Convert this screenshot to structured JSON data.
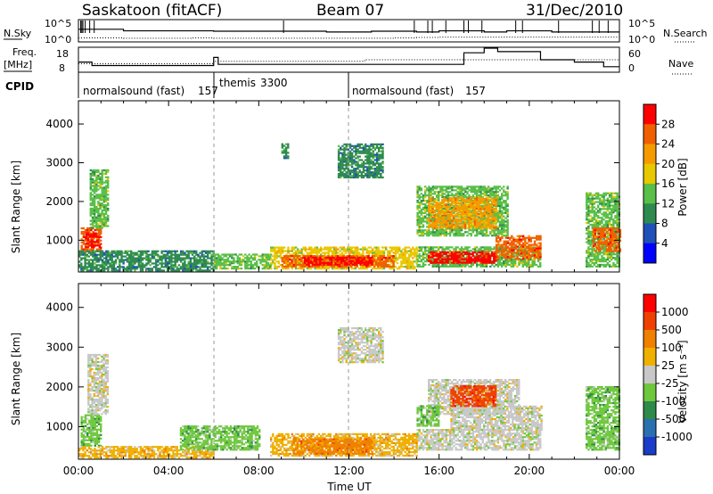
{
  "header": {
    "station": "Saskatoon (fitACF)",
    "beam": "Beam 07",
    "date": "31/Dec/2010"
  },
  "noise_panel": {
    "left_label": "N.Sky",
    "left_ticks": [
      "10^5",
      "10^0"
    ],
    "right_ticks": [
      "10^5",
      "10^0"
    ],
    "right_label": "N.Search",
    "sky_levels": [
      3,
      3,
      2.6,
      2.6,
      2.6,
      2.6,
      2.5,
      2.5,
      2.5,
      2.5,
      2.5,
      2.3,
      2.3,
      2.5,
      2.5,
      2.3,
      2.6,
      2.6,
      2.3,
      2.6,
      2.6,
      2.3,
      2.3,
      2.3
    ],
    "search_levels": [
      0.8,
      0.8,
      0.7,
      0.7,
      0.7,
      0.8,
      0.7,
      0.7,
      0.7,
      0.7,
      0.7,
      0.7,
      0.7,
      0.7,
      0.8,
      0.9,
      1.0,
      1.0,
      1.0,
      1.0,
      1.0,
      1.0,
      1.0,
      1.0
    ]
  },
  "freq_panel": {
    "left_label_1": "Freq.",
    "left_label_2": "[MHz]",
    "left_ticks": [
      "18",
      "8"
    ],
    "right_ticks": [
      "60",
      "0"
    ],
    "right_label": "Nave",
    "freq_segments_mhz": [
      [
        0,
        0.6,
        12
      ],
      [
        0.6,
        6.0,
        10.5
      ],
      [
        6.0,
        6.2,
        14
      ],
      [
        6.2,
        12.7,
        11
      ],
      [
        12.7,
        17.1,
        11
      ],
      [
        17.1,
        18.0,
        16
      ],
      [
        18.0,
        18.6,
        18
      ],
      [
        18.6,
        20.5,
        16.5
      ],
      [
        20.5,
        22.0,
        13
      ],
      [
        22.0,
        23.3,
        12
      ],
      [
        23.3,
        24.0,
        10
      ]
    ],
    "nave_segments": [
      [
        0,
        6.0,
        20
      ],
      [
        6.0,
        12.7,
        26
      ],
      [
        12.7,
        24.0,
        30
      ]
    ]
  },
  "cpid_panel": {
    "label": "CPID",
    "programs": [
      {
        "name": "normalsound (fast)",
        "cpid": "157",
        "start_hour": 0
      },
      {
        "name": "themis",
        "cpid": "3300",
        "start_hour": 6
      },
      {
        "name": "normalsound (fast)",
        "cpid": "157",
        "start_hour": 12
      }
    ]
  },
  "power_panel": {
    "ylabel": "Slant Range [km]",
    "yticks": [
      "4000",
      "3000",
      "2000",
      "1000"
    ],
    "colorbar_label": "Power [dB]",
    "colorbar_ticks": [
      "28",
      "24",
      "20",
      "16",
      "12",
      "8",
      "4"
    ],
    "colors": [
      "#0000ff",
      "#1f50b8",
      "#2f8a50",
      "#5abf48",
      "#e8c800",
      "#f59b00",
      "#f06000",
      "#ff0000"
    ]
  },
  "velocity_panel": {
    "ylabel": "Slant Range [km]",
    "yticks": [
      "4000",
      "3000",
      "2000",
      "1000"
    ],
    "colorbar_label": "Velocity [m s⁻¹]",
    "colorbar_ticks": [
      "1000",
      "500",
      "100",
      "25",
      "-25",
      "-100",
      "-500",
      "-1000"
    ],
    "colors": [
      "#1a3cc8",
      "#2a6fb0",
      "#2e8a48",
      "#6ec83c",
      "#c8c8c8",
      "#f0b000",
      "#f08000",
      "#f04000",
      "#ff0000"
    ]
  },
  "time_axis": {
    "ticks": [
      "00:00",
      "04:00",
      "08:00",
      "12:00",
      "16:00",
      "20:00",
      "00:00"
    ],
    "xlabel": "Time UT"
  },
  "chart_data": [
    {
      "type": "line",
      "title": "N.Sky / N.Search",
      "x_unit": "hours UT",
      "xlim": [
        0,
        24
      ],
      "series": [
        {
          "name": "N.Sky",
          "x": [
            0,
            1,
            2,
            3,
            4,
            5,
            6,
            7,
            8,
            9,
            10,
            11,
            12,
            13,
            14,
            15,
            16,
            17,
            18,
            19,
            20,
            21,
            22,
            23
          ],
          "values": [
            3,
            3,
            2.6,
            2.6,
            2.6,
            2.6,
            2.5,
            2.5,
            2.5,
            2.5,
            2.5,
            2.3,
            2.3,
            2.5,
            2.5,
            2.3,
            2.6,
            2.6,
            2.3,
            2.6,
            2.6,
            2.3,
            2.3,
            2.3
          ]
        },
        {
          "name": "N.Search",
          "x": [
            0,
            1,
            2,
            3,
            4,
            5,
            6,
            7,
            8,
            9,
            10,
            11,
            12,
            13,
            14,
            15,
            16,
            17,
            18,
            19,
            20,
            21,
            22,
            23
          ],
          "values": [
            0.8,
            0.8,
            0.7,
            0.7,
            0.7,
            0.8,
            0.7,
            0.7,
            0.7,
            0.7,
            0.7,
            0.7,
            0.7,
            0.7,
            0.8,
            0.9,
            1.0,
            1.0,
            1.0,
            1.0,
            1.0,
            1.0,
            1.0,
            1.0
          ]
        }
      ]
    },
    {
      "type": "line",
      "title": "Freq. [MHz] / Nave",
      "x_unit": "hours UT",
      "xlim": [
        0,
        24
      ],
      "ylim_freq": [
        8,
        18
      ],
      "ylim_nave": [
        0,
        60
      ]
    },
    {
      "type": "heatmap",
      "title": "Power [dB]",
      "xlabel": "Time UT",
      "ylabel": "Slant Range [km]",
      "xlim": [
        0,
        24
      ],
      "ylim": [
        180,
        4600
      ],
      "clim": [
        0,
        30
      ],
      "regions": [
        {
          "t0": 0.1,
          "t1": 1.0,
          "r0": 700,
          "r1": 1300,
          "level": 6
        },
        {
          "t0": 0.3,
          "t1": 0.9,
          "r0": 800,
          "r1": 1200,
          "level": 7
        },
        {
          "t0": 0.5,
          "t1": 1.3,
          "r0": 1300,
          "r1": 2800,
          "level": 3
        },
        {
          "t0": 0.0,
          "t1": 6.0,
          "r0": 200,
          "r1": 700,
          "level": 2
        },
        {
          "t0": 6.0,
          "t1": 8.5,
          "r0": 250,
          "r1": 650,
          "level": 3
        },
        {
          "t0": 8.5,
          "t1": 15.0,
          "r0": 250,
          "r1": 800,
          "level": 4
        },
        {
          "t0": 9.0,
          "t1": 14.0,
          "r0": 300,
          "r1": 600,
          "level": 6
        },
        {
          "t0": 10.0,
          "t1": 13.0,
          "r0": 350,
          "r1": 550,
          "level": 7
        },
        {
          "t0": 15.0,
          "t1": 20.5,
          "r0": 300,
          "r1": 800,
          "level": 3
        },
        {
          "t0": 15.5,
          "t1": 18.5,
          "r0": 400,
          "r1": 700,
          "level": 7
        },
        {
          "t0": 18.5,
          "t1": 20.5,
          "r0": 500,
          "r1": 1100,
          "level": 6
        },
        {
          "t0": 15.0,
          "t1": 19.0,
          "r0": 1100,
          "r1": 2400,
          "level": 3
        },
        {
          "t0": 15.5,
          "t1": 18.5,
          "r0": 1300,
          "r1": 2100,
          "level": 5
        },
        {
          "t0": 11.5,
          "t1": 13.5,
          "r0": 2600,
          "r1": 3500,
          "level": 2
        },
        {
          "t0": 9.0,
          "t1": 9.3,
          "r0": 3100,
          "r1": 3500,
          "level": 2
        },
        {
          "t0": 22.5,
          "t1": 24.0,
          "r0": 300,
          "r1": 2200,
          "level": 3
        },
        {
          "t0": 22.8,
          "t1": 24.0,
          "r0": 700,
          "r1": 1300,
          "level": 6
        }
      ]
    },
    {
      "type": "heatmap",
      "title": "Velocity [m s⁻¹]",
      "xlabel": "Time UT",
      "ylabel": "Slant Range [km]",
      "xlim": [
        0,
        24
      ],
      "ylim": [
        180,
        4600
      ],
      "clim": [
        -1000,
        1000
      ],
      "regions": [
        {
          "t0": 0.1,
          "t1": 1.0,
          "r0": 500,
          "r1": 1300,
          "level": 3
        },
        {
          "t0": 0.4,
          "t1": 1.3,
          "r0": 1300,
          "r1": 2800,
          "level": 4
        },
        {
          "t0": 0.0,
          "t1": 6.0,
          "r0": 200,
          "r1": 500,
          "level": 5
        },
        {
          "t0": 4.5,
          "t1": 8.0,
          "r0": 400,
          "r1": 1000,
          "level": 3
        },
        {
          "t0": 8.5,
          "t1": 15.0,
          "r0": 250,
          "r1": 800,
          "level": 5
        },
        {
          "t0": 9.5,
          "t1": 13.0,
          "r0": 300,
          "r1": 700,
          "level": 6
        },
        {
          "t0": 15.0,
          "t1": 20.5,
          "r0": 400,
          "r1": 900,
          "level": 4
        },
        {
          "t0": 16.5,
          "t1": 20.5,
          "r0": 900,
          "r1": 1500,
          "level": 4
        },
        {
          "t0": 15.5,
          "t1": 19.5,
          "r0": 1300,
          "r1": 2200,
          "level": 4
        },
        {
          "t0": 16.5,
          "t1": 18.5,
          "r0": 1500,
          "r1": 2000,
          "level": 7
        },
        {
          "t0": 15.0,
          "t1": 16.0,
          "r0": 1000,
          "r1": 1500,
          "level": 3
        },
        {
          "t0": 11.5,
          "t1": 13.5,
          "r0": 2600,
          "r1": 3500,
          "level": 4
        },
        {
          "t0": 22.5,
          "t1": 24.0,
          "r0": 400,
          "r1": 2000,
          "level": 3
        }
      ]
    }
  ]
}
